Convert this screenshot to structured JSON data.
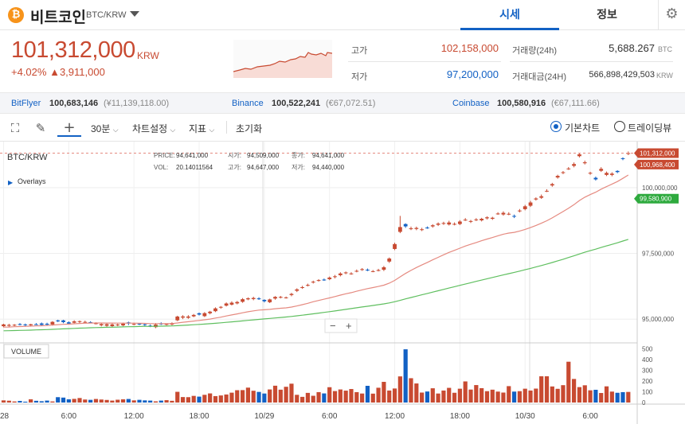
{
  "header": {
    "coin_symbol": "₿",
    "coin_name": "비트코인",
    "pair": "BTC/KRW",
    "tabs": [
      {
        "label": "시세",
        "active": true
      },
      {
        "label": "정보",
        "active": false
      }
    ],
    "settings_icon": "gear-icon"
  },
  "summary": {
    "price": "101,312,000",
    "unit": "KRW",
    "change_pct": "+4.02%",
    "change_arrow": "▲",
    "change_abs": "3,911,000",
    "high_label": "고가",
    "high_value": "102,158,000",
    "low_label": "저가",
    "low_value": "97,200,000",
    "volume_label": "거래량(24h)",
    "volume_value": "5,688.267",
    "volume_unit": "BTC",
    "amount_label": "거래대금(24H)",
    "amount_value": "566,898,429,503",
    "amount_unit": "KRW"
  },
  "exchanges": [
    {
      "name": "BitFlyer",
      "value": "100,683,146",
      "sub": "(¥11,139,118.00)"
    },
    {
      "name": "Binance",
      "value": "100,522,241",
      "sub": "(€67,072.51)"
    },
    {
      "name": "Coinbase",
      "value": "100,580,916",
      "sub": "(€67,111.66)"
    }
  ],
  "toolbar": {
    "interval": "30분",
    "chart_settings": "차트설정",
    "indicator": "지표",
    "reset": "초기화",
    "basic_chart": "기본차트",
    "trading_view": "트레이딩뷰"
  },
  "chart_info": {
    "pair": "BTC/KRW",
    "overlays": "Overlays",
    "price_label": "PRICE:",
    "price_val": "94,641,000",
    "open_label": "시가:",
    "open_val": "94,509,000",
    "close_label": "종가:",
    "close_val": "94,641,000",
    "vol_label": "VOL:",
    "vol_val": "20.14011564",
    "high_label": "고가:",
    "high_val": "94,647,000",
    "low_label": "저가:",
    "low_val": "94,440,000",
    "volume_title": "VOLUME",
    "zoom_out": "−",
    "zoom_in": "+"
  },
  "colors": {
    "up": "#c84a31",
    "down": "#1261c4",
    "ma_short": "#e58a80",
    "ma_long": "#5fbf5f"
  },
  "chart_data": {
    "type": "candlestick",
    "y_ticks": [
      "100,000,000",
      "97,500,000",
      "95,000,000"
    ],
    "y_tick_values": [
      100000000,
      97500000,
      95000000
    ],
    "ylim": [
      94100000,
      101750000
    ],
    "volume_ticks": [
      "500",
      "400",
      "300",
      "200",
      "100",
      "0"
    ],
    "volume_tick_values": [
      500,
      400,
      300,
      200,
      100,
      0
    ],
    "volume_lim": [
      0,
      520
    ],
    "x_ticks": [
      "28",
      "6:00",
      "12:00",
      "18:00",
      "10/29",
      "6:00",
      "12:00",
      "18:00",
      "10/30",
      "6:00"
    ],
    "x_tick_index": [
      0,
      12,
      24,
      36,
      48,
      60,
      72,
      84,
      96,
      108
    ],
    "price_tags": [
      {
        "label": "101,312,000",
        "value": 101312000,
        "color": "#c84a31"
      },
      {
        "label": "100,968,400",
        "value": 100968400,
        "color": "#c84a31"
      },
      {
        "label": "99,580,900",
        "value": 99580900,
        "color": "#2eaa3e"
      }
    ],
    "close": [
      94802,
      94781,
      94788,
      94791,
      94772,
      94807,
      94801,
      94784,
      94792,
      94898,
      94918,
      94889,
      94833,
      94918,
      94924,
      94897,
      94887,
      94845,
      94814,
      94810,
      94802,
      94795,
      94832,
      94834,
      94819,
      94807,
      94781,
      94731,
      94796,
      94822,
      94817,
      94850,
      95100,
      95104,
      95101,
      95162,
      95176,
      95229,
      95286,
      95410,
      95469,
      95597,
      95627,
      95653,
      95759,
      95792,
      95805,
      95787,
      95683,
      95751,
      95847,
      95846,
      95828,
      95960,
      96133,
      96218,
      96301,
      96424,
      96485,
      96501,
      96582,
      96630,
      96737,
      96777,
      96738,
      96837,
      96901,
      96870,
      96826,
      96866,
      96974,
      97306,
      97855,
      98502,
      98527,
      98453,
      98467,
      98417,
      98468,
      98569,
      98633,
      98654,
      98676,
      98623,
      98712,
      98782,
      98731,
      98791,
      98816,
      98871,
      98855,
      99016,
      99042,
      99006,
      98898,
      99130,
      99291,
      99436,
      99588,
      99672,
      99879,
      100135,
      100446,
      100586,
      100727,
      100897,
      101266,
      100963,
      100562,
      100314,
      100714,
      100560,
      100532,
      100592,
      101088,
      101312
    ],
    "open": [
      94732,
      94749,
      94765,
      94813,
      94800,
      94769,
      94809,
      94837,
      94826,
      94799,
      94952,
      94954,
      94881,
      94866,
      94906,
      94882,
      94888,
      94839,
      94767,
      94750,
      94735,
      94765,
      94763,
      94878,
      94808,
      94828,
      94804,
      94755,
      94697,
      94834,
      94811,
      94797,
      94958,
      95059,
      95054,
      95108,
      95225,
      95115,
      95226,
      95304,
      95441,
      95515,
      95554,
      95601,
      95661,
      95755,
      95764,
      95789,
      95734,
      95645,
      95785,
      95838,
      95818,
      95918,
      96079,
      96190,
      96286,
      96394,
      96479,
      96505,
      96521,
      96601,
      96673,
      96752,
      96736,
      96832,
      96881,
      96881,
      96826,
      96866,
      96879,
      97190,
      97669,
      98319,
      98615,
      98439,
      98429,
      98399,
      98482,
      98527,
      98589,
      98636,
      98600,
      98622,
      98617,
      98779,
      98707,
      98775,
      98757,
      98834,
      98817,
      99010,
      98980,
      98994,
      98925,
      99102,
      99182,
      99313,
      99551,
      99616,
      99870,
      100083,
      100387,
      100559,
      100717,
      100828,
      101196,
      100928,
      100541,
      100373,
      100641,
      100485,
      100484,
      100635,
      101118,
      101288
    ],
    "high": [
      94827,
      94825,
      94813,
      94850,
      94832,
      94823,
      94852,
      94874,
      94866,
      94925,
      94979,
      94977,
      94917,
      94958,
      94948,
      94943,
      94921,
      94881,
      94849,
      94849,
      94837,
      94831,
      94871,
      94905,
      94869,
      94853,
      94850,
      94800,
      94854,
      94881,
      94837,
      94879,
      95130,
      95152,
      95153,
      95197,
      95252,
      95268,
      95316,
      95450,
      95498,
      95637,
      95679,
      95692,
      95803,
      95830,
      95854,
      95834,
      95755,
      95780,
      95877,
      95882,
      95859,
      96001,
      96173,
      96267,
      96350,
      96464,
      96521,
      96545,
      96621,
      96682,
      96784,
      96812,
      96785,
      96888,
      96942,
      96925,
      96867,
      96914,
      97022,
      97345,
      97906,
      98926,
      98645,
      98518,
      98518,
      98472,
      98525,
      98610,
      98679,
      98703,
      98741,
      98677,
      98763,
      98843,
      98773,
      98840,
      98852,
      98911,
      98892,
      99065,
      99099,
      99066,
      98977,
      99187,
      99345,
      99497,
      99631,
      99738,
      99941,
      100182,
      100491,
      100630,
      100783,
      100958,
      101317,
      101027,
      100604,
      100420,
      100777,
      100611,
      100585,
      100660,
      101152,
      101374
    ],
    "low": [
      94688,
      94704,
      94734,
      94764,
      94731,
      94727,
      94776,
      94765,
      94757,
      94754,
      94890,
      94847,
      94795,
      94831,
      94852,
      94851,
      94841,
      94802,
      94726,
      94712,
      94686,
      94736,
      94732,
      94774,
      94769,
      94777,
      94742,
      94698,
      94658,
      94781,
      94762,
      94768,
      94925,
      95003,
      95015,
      95076,
      95140,
      95083,
      95184,
      95270,
      95396,
      95483,
      95522,
      95564,
      95622,
      95721,
      95720,
      95733,
      95637,
      95612,
      95739,
      95790,
      95783,
      95871,
      96031,
      96152,
      96246,
      96356,
      96430,
      96456,
      96484,
      96552,
      96626,
      96708,
      96689,
      96782,
      96837,
      96826,
      96785,
      96818,
      96830,
      97138,
      97624,
      98270,
      98470,
      98386,
      98382,
      98349,
      98436,
      98478,
      98542,
      98586,
      98561,
      98567,
      98576,
      98735,
      98656,
      98730,
      98715,
      98791,
      98775,
      98969,
      98934,
      98953,
      98844,
      99059,
      99137,
      99266,
      99509,
      99572,
      99832,
      100034,
      100341,
      100514,
      100675,
      100772,
      101147,
      100881,
      100490,
      100270,
      100597,
      100440,
      100432,
      100550,
      101043,
      101237
    ],
    "volume": [
      20,
      17,
      10,
      15,
      8,
      30,
      16,
      12,
      18,
      10,
      50,
      46,
      30,
      34,
      42,
      28,
      25,
      33,
      28,
      24,
      18,
      26,
      30,
      33,
      20,
      25,
      20,
      18,
      11,
      18,
      22,
      16,
      100,
      51,
      50,
      62,
      55,
      72,
      85,
      60,
      66,
      75,
      92,
      115,
      116,
      139,
      110,
      99,
      84,
      122,
      157,
      120,
      147,
      176,
      72,
      53,
      90,
      63,
      97,
      85,
      143,
      107,
      122,
      111,
      126,
      97,
      84,
      156,
      83,
      138,
      193,
      112,
      131,
      244,
      497,
      227,
      178,
      93,
      103,
      133,
      84,
      112,
      137,
      91,
      129,
      197,
      121,
      163,
      134,
      106,
      120,
      102,
      93,
      153,
      102,
      106,
      129,
      112,
      130,
      245,
      245,
      150,
      128,
      162,
      381,
      220,
      144,
      161,
      114,
      119,
      89,
      151,
      102,
      91,
      97,
      99
    ],
    "ma_short": [
      94700,
      94703,
      94713,
      94721,
      94727,
      94734,
      94744,
      94751,
      94760,
      94775,
      94793,
      94806,
      94812,
      94825,
      94838,
      94846,
      94853,
      94856,
      94855,
      94854,
      94852,
      94849,
      94849,
      94851,
      94850,
      94847,
      94841,
      94831,
      94831,
      94831,
      94830,
      94832,
      94857,
      94882,
      94905,
      94929,
      94953,
      94978,
      95005,
      95042,
      95078,
      95121,
      95162,
      95200,
      95243,
      95282,
      95317,
      95345,
      95357,
      95374,
      95397,
      95416,
      95431,
      95461,
      95504,
      95551,
      95602,
      95662,
      95713,
      95759,
      95809,
      95859,
      95913,
      95965,
      96009,
      96061,
      96114,
      96161,
      96202,
      96243,
      96293,
      96367,
      96473,
      96611,
      96740,
      96855,
      96962,
      97061,
      97157,
      97257,
      97352,
      97446,
      97539,
      97617,
      97697,
      97779,
      97846,
      97914,
      97981,
      98047,
      98104,
      98171,
      98229,
      98274,
      98300,
      98351,
      98413,
      98481,
      98564,
      98648,
      98741,
      98849,
      98970,
      99092,
      99217,
      99352,
      99510,
      99636,
      99737,
      99827,
      99941,
      100040,
      100134,
      100231,
      100354,
      100481
    ],
    "ma_long": [
      94560,
      94564,
      94569,
      94574,
      94579,
      94585,
      94592,
      94598,
      94605,
      94614,
      94623,
      94632,
      94640,
      94649,
      94658,
      94666,
      94674,
      94681,
      94687,
      94692,
      94697,
      94702,
      94708,
      94713,
      94718,
      94722,
      94725,
      94727,
      94731,
      94735,
      94738,
      94743,
      94754,
      94766,
      94777,
      94789,
      94802,
      94815,
      94829,
      94845,
      94861,
      94879,
      94897,
      94915,
      94935,
      94955,
      94975,
      94993,
      95010,
      95028,
      95047,
      95066,
      95084,
      95105,
      95128,
      95151,
      95176,
      95203,
      95230,
      95257,
      95285,
      95313,
      95343,
      95373,
      95402,
      95432,
      95463,
      95492,
      95521,
      95550,
      95581,
      95617,
      95662,
      95716,
      95771,
      95823,
      95875,
      95926,
      95977,
      96029,
      96080,
      96132,
      96183,
      96234,
      96285,
      96336,
      96386,
      96436,
      96486,
      96536,
      96584,
      96634,
      96683,
      96731,
      96778,
      96828,
      96879,
      96931,
      96985,
      97039,
      97095,
      97154,
      97216,
      97279,
      97343,
      97409,
      97479,
      97544,
      97605,
      97663,
      97725,
      97785,
      97844,
      97904,
      97969,
      98035
    ]
  }
}
